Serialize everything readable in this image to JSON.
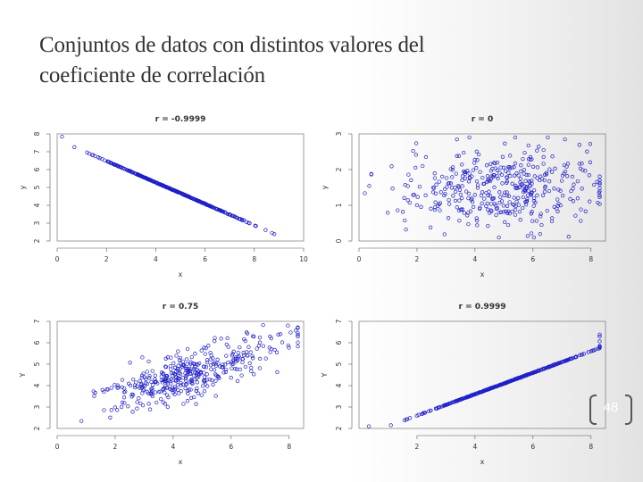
{
  "slide": {
    "title_line1": "Conjuntos de datos con distintos valores del",
    "title_line2": "coeficiente de correlación",
    "page_number": "48"
  },
  "colors": {
    "points": "#2020c8",
    "axis": "#555555",
    "frame": "#888888"
  },
  "chart_data": [
    {
      "type": "scatter",
      "title": "r = -0.9999",
      "xlabel": "x",
      "ylabel": "y",
      "xlim": [
        0,
        10
      ],
      "ylim": [
        2,
        8
      ],
      "xticks": [
        0,
        2,
        4,
        6,
        8,
        10
      ],
      "yticks": [
        2,
        3,
        4,
        5,
        6,
        7,
        8
      ],
      "correlation": -0.9999,
      "x_center": 4.8,
      "x_spread": 1.5,
      "y_center": 4.8,
      "y_spread": 0.9,
      "n": 400
    },
    {
      "type": "scatter",
      "title": "r = 0",
      "xlabel": "x",
      "ylabel": "y",
      "xlim": [
        0,
        8.5
      ],
      "ylim": [
        0,
        3
      ],
      "xticks": [
        0,
        2,
        4,
        6,
        8
      ],
      "yticks": [
        0,
        1,
        2,
        3
      ],
      "correlation": 0,
      "x_center": 4.9,
      "x_spread": 1.7,
      "y_center": 1.45,
      "y_spread": 0.55,
      "n": 400
    },
    {
      "type": "scatter",
      "title": "r = 0.75",
      "xlabel": "x",
      "ylabel": "Y",
      "xlim": [
        0,
        8.5
      ],
      "ylim": [
        2,
        7
      ],
      "xticks": [
        0,
        2,
        4,
        6,
        8
      ],
      "yticks": [
        2,
        3,
        4,
        5,
        6,
        7
      ],
      "correlation": 0.75,
      "x_center": 4.6,
      "x_spread": 1.5,
      "y_center": 4.5,
      "y_spread": 0.85,
      "n": 400
    },
    {
      "type": "scatter",
      "title": "r = 0.9999",
      "xlabel": "x",
      "ylabel": "Y",
      "xlim": [
        0,
        8.5
      ],
      "ylim": [
        2,
        7
      ],
      "xticks": [
        2,
        4,
        6,
        8
      ],
      "yticks": [
        2,
        3,
        4,
        5,
        6,
        7
      ],
      "correlation": 0.9999,
      "x_center": 5.2,
      "x_spread": 1.5,
      "y_center": 4.2,
      "y_spread": 0.75,
      "n": 400
    }
  ]
}
